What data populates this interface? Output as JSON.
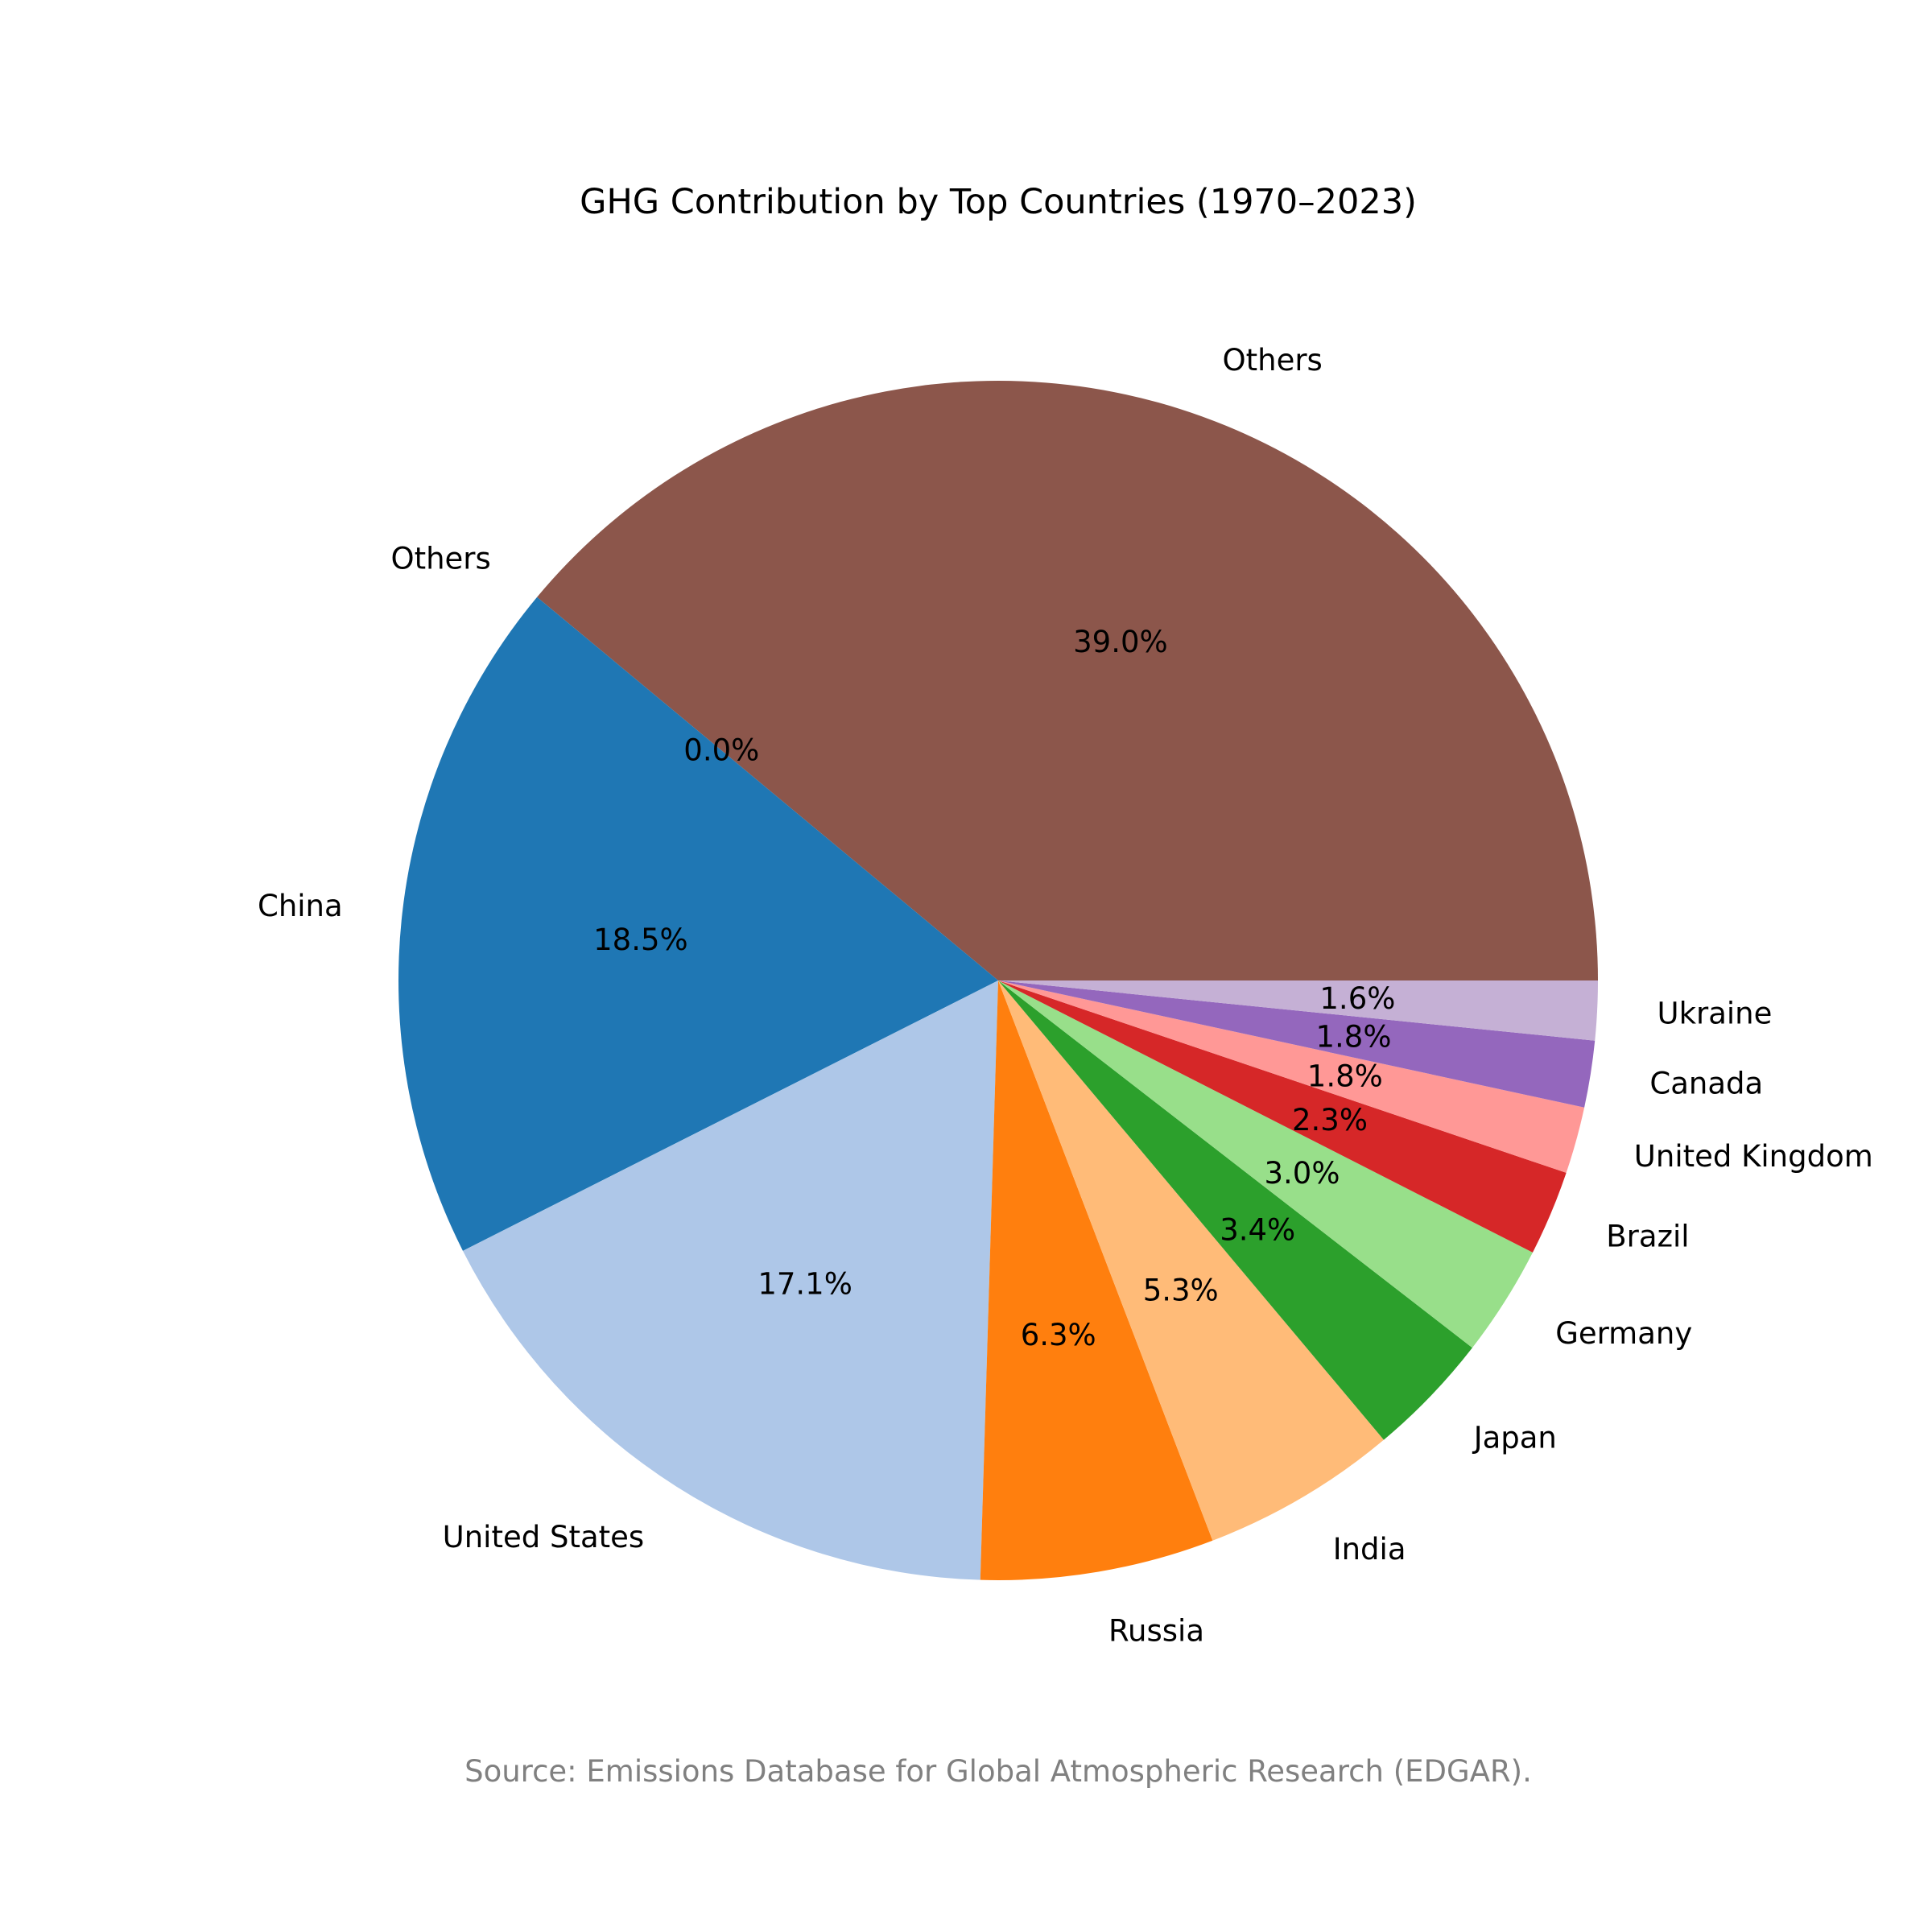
{
  "chart_data": {
    "type": "pie",
    "title": "GHG Contribution by Top Countries (1970–2023)",
    "source_note": "Source: Emissions Database for Global Atmospheric Research (EDGAR).",
    "start_angle_deg": 0,
    "direction": "counterclockwise",
    "slices": [
      {
        "label": "Others",
        "value": 39.0,
        "pct_label": "39.0%",
        "color": "#8c564b"
      },
      {
        "label": "Others",
        "value": 0.0,
        "pct_label": "0.0%",
        "color": "#8c564b"
      },
      {
        "label": "China",
        "value": 18.5,
        "pct_label": "18.5%",
        "color": "#1f77b4"
      },
      {
        "label": "United States",
        "value": 17.1,
        "pct_label": "17.1%",
        "color": "#aec7e8"
      },
      {
        "label": "Russia",
        "value": 6.3,
        "pct_label": "6.3%",
        "color": "#ff7f0e"
      },
      {
        "label": "India",
        "value": 5.3,
        "pct_label": "5.3%",
        "color": "#ffbb78"
      },
      {
        "label": "Japan",
        "value": 3.4,
        "pct_label": "3.4%",
        "color": "#2ca02c"
      },
      {
        "label": "Germany",
        "value": 3.0,
        "pct_label": "3.0%",
        "color": "#98df8a"
      },
      {
        "label": "Brazil",
        "value": 2.3,
        "pct_label": "2.3%",
        "color": "#d62728"
      },
      {
        "label": "United Kingdom",
        "value": 1.8,
        "pct_label": "1.8%",
        "color": "#ff9896"
      },
      {
        "label": "Canada",
        "value": 1.8,
        "pct_label": "1.8%",
        "color": "#9467bd"
      },
      {
        "label": "Ukraine",
        "value": 1.6,
        "pct_label": "1.6%",
        "color": "#c5b0d5"
      }
    ]
  }
}
